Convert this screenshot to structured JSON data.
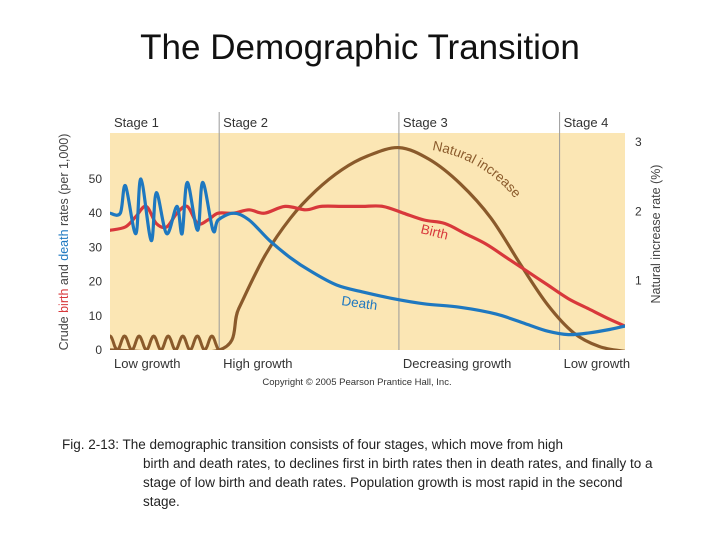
{
  "slide": {
    "title": "The Demographic Transition",
    "caption_first": "Fig. 2-13: The demographic transition consists of four stages, which move from high",
    "caption_rest": "birth and death rates, to declines first in birth rates then in death rates, and finally to a stage of low birth and death rates. Population growth is most rapid in the second stage."
  },
  "chart_data": {
    "type": "line",
    "title": "The Demographic Transition",
    "copyright": "Copyright © 2005 Pearson Prantice Hall, Inc.",
    "x_range": [
      0,
      100
    ],
    "stages": [
      {
        "name": "Stage 1",
        "x_start": 0,
        "x_end": 21.2
      },
      {
        "name": "Stage 2",
        "x_start": 21.2,
        "x_end": 56.1
      },
      {
        "name": "Stage 3",
        "x_start": 56.1,
        "x_end": 87.3
      },
      {
        "name": "Stage 4",
        "x_start": 87.3,
        "x_end": 100
      }
    ],
    "phases": [
      {
        "label": "Low growth",
        "x": 0
      },
      {
        "label": "High growth",
        "x": 21.2
      },
      {
        "label": "Decreasing growth",
        "x": 56.1
      },
      {
        "label": "Low growth",
        "x": 87.3
      }
    ],
    "left_axis": {
      "label_parts": [
        {
          "text": "Crude ",
          "color": "#444444"
        },
        {
          "text": "birth",
          "color": "#d8383b"
        },
        {
          "text": " and ",
          "color": "#444444"
        },
        {
          "text": "death",
          "color": "#1e78c0"
        },
        {
          "text": " rates (per 1,000)",
          "color": "#444444"
        }
      ],
      "range": [
        0,
        60
      ],
      "ticks": [
        0,
        10,
        20,
        30,
        40,
        50
      ]
    },
    "right_axis": {
      "label": "Natural increase rate (%)",
      "range": [
        0,
        3
      ],
      "ticks": [
        1,
        2,
        3
      ]
    },
    "series": [
      {
        "name": "Birth",
        "axis": "left",
        "color": "#d8383b",
        "points": [
          [
            0,
            35
          ],
          [
            3,
            36
          ],
          [
            5,
            39
          ],
          [
            7,
            42
          ],
          [
            9,
            37
          ],
          [
            11,
            36
          ],
          [
            13,
            40
          ],
          [
            15,
            42
          ],
          [
            17,
            37
          ],
          [
            19,
            38
          ],
          [
            21,
            40
          ],
          [
            24,
            40
          ],
          [
            27,
            41
          ],
          [
            30,
            40
          ],
          [
            34,
            42
          ],
          [
            38,
            41
          ],
          [
            41,
            42
          ],
          [
            45,
            42
          ],
          [
            49,
            42
          ],
          [
            53,
            42
          ],
          [
            57,
            40
          ],
          [
            61,
            38
          ],
          [
            65,
            37
          ],
          [
            69,
            34
          ],
          [
            73,
            31
          ],
          [
            77,
            27
          ],
          [
            81,
            23
          ],
          [
            85,
            19
          ],
          [
            89,
            15
          ],
          [
            93,
            12
          ],
          [
            97,
            9
          ],
          [
            100,
            7
          ]
        ]
      },
      {
        "name": "Death",
        "axis": "left",
        "color": "#1e78c0",
        "points": [
          [
            0,
            40
          ],
          [
            2,
            40
          ],
          [
            3,
            48
          ],
          [
            5,
            34
          ],
          [
            6,
            50
          ],
          [
            8,
            32
          ],
          [
            9,
            46
          ],
          [
            11,
            34
          ],
          [
            13,
            42
          ],
          [
            14,
            34
          ],
          [
            15,
            49
          ],
          [
            17,
            35
          ],
          [
            18,
            49
          ],
          [
            20,
            35
          ],
          [
            21,
            38
          ],
          [
            24,
            40
          ],
          [
            27,
            38
          ],
          [
            31,
            32
          ],
          [
            35,
            27
          ],
          [
            39,
            23
          ],
          [
            44,
            19
          ],
          [
            49,
            17
          ],
          [
            55,
            15
          ],
          [
            61,
            13.5
          ],
          [
            68,
            12.5
          ],
          [
            75,
            10.5
          ],
          [
            81,
            7.5
          ],
          [
            85,
            5.5
          ],
          [
            89,
            4.5
          ],
          [
            93,
            5
          ],
          [
            97,
            6
          ],
          [
            100,
            7
          ]
        ]
      },
      {
        "name": "Natural increase",
        "axis": "right",
        "color": "#8a5a2b",
        "points": [
          [
            0,
            0
          ],
          [
            21.2,
            0
          ],
          [
            25,
            0.6
          ],
          [
            30,
            1.35
          ],
          [
            35,
            1.9
          ],
          [
            40,
            2.3
          ],
          [
            45,
            2.6
          ],
          [
            50,
            2.8
          ],
          [
            56.1,
            2.92
          ],
          [
            62,
            2.75
          ],
          [
            68,
            2.4
          ],
          [
            74,
            1.9
          ],
          [
            80,
            1.2
          ],
          [
            85,
            0.65
          ],
          [
            90,
            0.25
          ],
          [
            95,
            0.05
          ],
          [
            100,
            -0.02
          ]
        ]
      }
    ],
    "annotations": [
      {
        "text": "Natural increase",
        "series": "Natural increase",
        "color": "#8a5a2b"
      },
      {
        "text": "Birth",
        "series": "Birth",
        "color": "#d8383b"
      },
      {
        "text": "Death",
        "series": "Death",
        "color": "#1e78c0"
      }
    ]
  }
}
